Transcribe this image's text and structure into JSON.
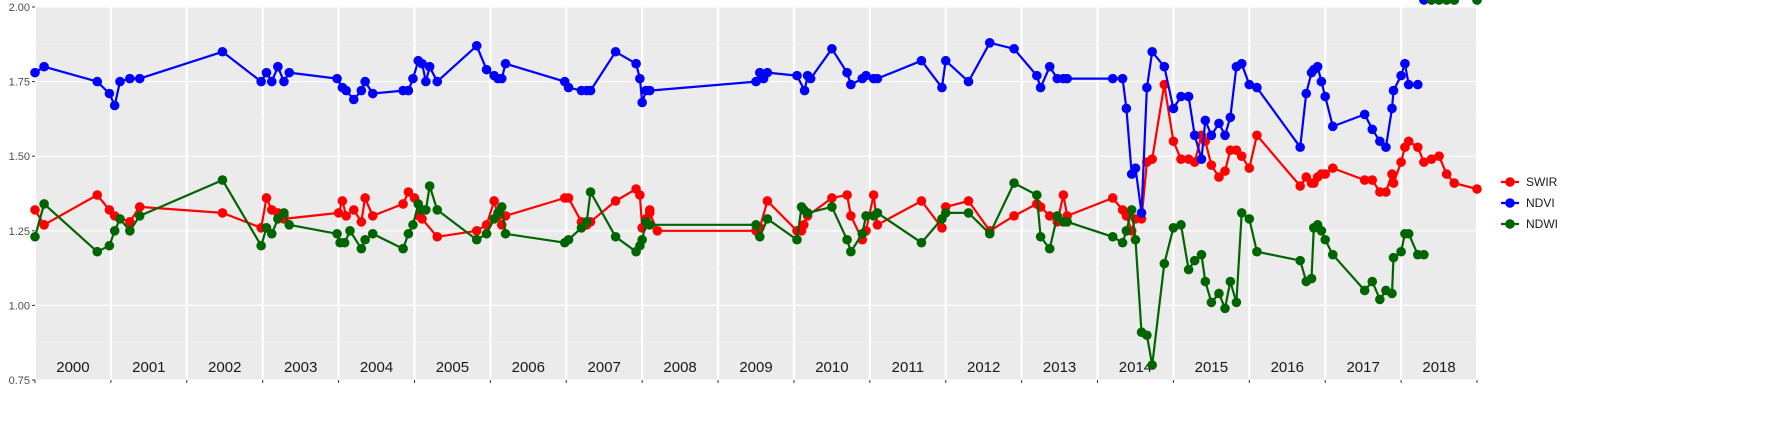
{
  "chart_data": {
    "type": "line",
    "title": "",
    "xlabel": "",
    "ylabel": "",
    "ylim": [
      0.75,
      2.0
    ],
    "y_ticks": [
      "0.75",
      "1.00",
      "1.25",
      "1.50",
      "1.75",
      "2.00"
    ],
    "xlim": [
      2000.0,
      2019.0
    ],
    "year_labels": [
      "2000",
      "2001",
      "2002",
      "2003",
      "2004",
      "2005",
      "2006",
      "2007",
      "2008",
      "2009",
      "2010",
      "2011",
      "2012",
      "2013",
      "2014",
      "2015",
      "2016",
      "2017",
      "2018"
    ],
    "grid": true,
    "legend_position": "right",
    "series": [
      {
        "name": "SWIR",
        "color": "#ff0000",
        "x": [
          2000.0,
          2000.12,
          2000.82,
          2000.98,
          2001.05,
          2001.25,
          2001.38,
          2002.47,
          2002.98,
          2003.05,
          2003.12,
          2003.2,
          2003.28,
          2003.28,
          2004.0,
          2004.05,
          2004.1,
          2004.2,
          2004.3,
          2004.35,
          2004.45,
          2004.85,
          2004.92,
          2005.0,
          2005.06,
          2005.1,
          2005.3,
          2005.82,
          2005.95,
          2006.05,
          2006.1,
          2006.15,
          2006.2,
          2006.98,
          2007.03,
          2007.2,
          2007.27,
          2007.32,
          2007.65,
          2007.92,
          2007.97,
          2008.0,
          2008.05,
          2008.1,
          2008.1,
          2008.2,
          2009.5,
          2009.55,
          2009.65,
          2010.04,
          2010.1,
          2010.13,
          2010.18,
          2010.5,
          2010.7,
          2010.75,
          2010.9,
          2010.95,
          2011.05,
          2011.1,
          2011.68,
          2011.95,
          2012.0,
          2012.3,
          2012.58,
          2012.9,
          2013.2,
          2013.25,
          2013.37,
          2013.47,
          2013.55,
          2013.6,
          2014.2,
          2014.33,
          2014.38,
          2014.45,
          2014.5,
          2014.58,
          2014.65,
          2014.72,
          2014.88,
          2015.0,
          2015.1,
          2015.2,
          2015.28,
          2015.37,
          2015.42,
          2015.5,
          2015.6,
          2015.68,
          2015.75,
          2015.83,
          2015.9,
          2016.0,
          2016.1,
          2016.67,
          2016.75,
          2016.82,
          2016.85,
          2016.9,
          2016.95,
          2017.0,
          2017.1,
          2017.52,
          2017.62,
          2017.72,
          2017.8,
          2017.88,
          2017.9,
          2018.0,
          2018.05,
          2018.1,
          2018.22,
          2018.3,
          2018.4,
          2018.5,
          2018.6,
          2018.7,
          2019.0
        ],
        "values": [
          1.32,
          1.27,
          1.37,
          1.32,
          1.3,
          1.28,
          1.33,
          1.31,
          1.26,
          1.36,
          1.32,
          1.31,
          1.3,
          1.29,
          1.31,
          1.35,
          1.3,
          1.32,
          1.28,
          1.36,
          1.3,
          1.34,
          1.38,
          1.36,
          1.3,
          1.29,
          1.23,
          1.25,
          1.27,
          1.35,
          1.3,
          1.27,
          1.3,
          1.36,
          1.36,
          1.28,
          1.27,
          1.28,
          1.35,
          1.39,
          1.37,
          1.26,
          1.29,
          1.32,
          1.31,
          1.25,
          1.25,
          1.26,
          1.35,
          1.25,
          1.25,
          1.27,
          1.3,
          1.36,
          1.37,
          1.3,
          1.22,
          1.25,
          1.37,
          1.27,
          1.35,
          1.26,
          1.33,
          1.35,
          1.25,
          1.3,
          1.34,
          1.33,
          1.3,
          1.28,
          1.37,
          1.3,
          1.36,
          1.32,
          1.3,
          1.25,
          1.29,
          1.29,
          1.48,
          1.49,
          1.74,
          1.55,
          1.49,
          1.49,
          1.48,
          1.57,
          1.55,
          1.47,
          1.43,
          1.45,
          1.52,
          1.52,
          1.5,
          1.46,
          1.57,
          1.4,
          1.43,
          1.41,
          1.41,
          1.43,
          1.44,
          1.44,
          1.46,
          1.42,
          1.42,
          1.38,
          1.38,
          1.44,
          1.41,
          1.48,
          1.53,
          1.55,
          1.53,
          1.48,
          1.49,
          1.5,
          1.44,
          1.41,
          1.39
        ],
        "_unused": ""
      }
    ]
  }
}
